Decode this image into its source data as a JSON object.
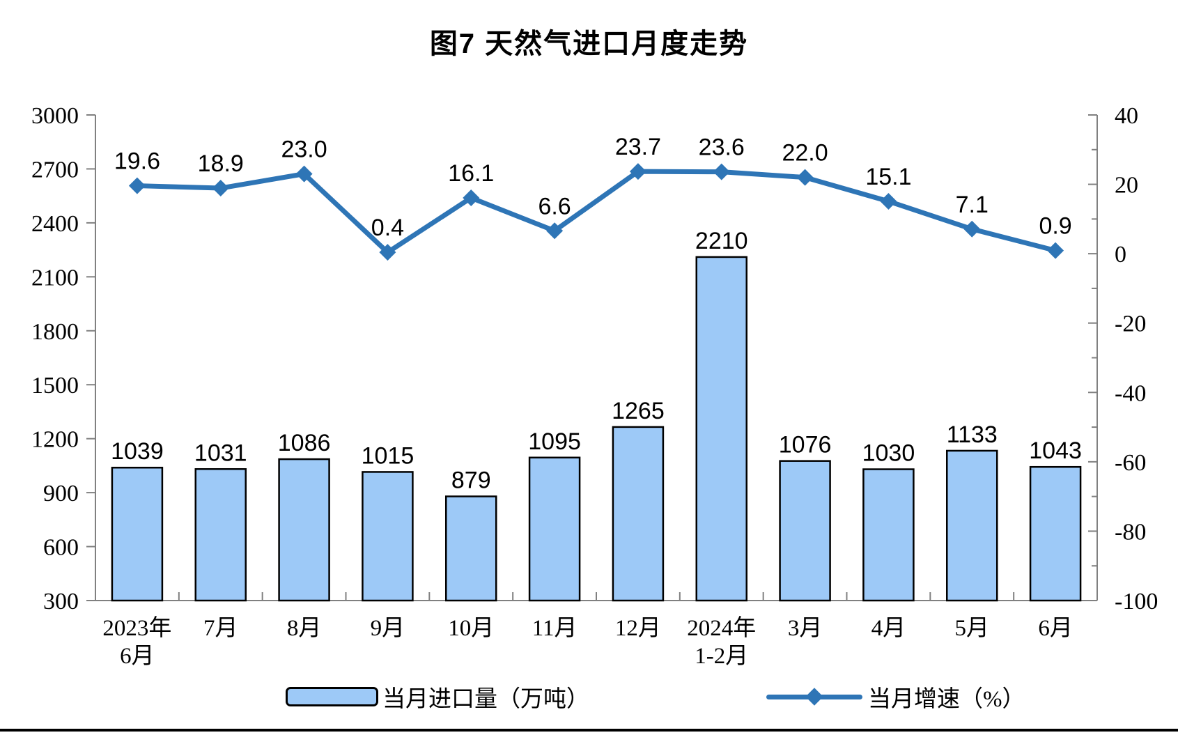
{
  "title": "图7 天然气进口月度走势",
  "colors": {
    "bar_fill": "#9DC9F7",
    "bar_border": "#000000",
    "line": "#2E75B6",
    "axis": "#808080",
    "text": "#000000"
  },
  "chart_data": {
    "type": "bar",
    "subtype": "combo-bar-line-dual-axis",
    "title": "图7 天然气进口月度走势",
    "categories": [
      [
        "2023年",
        "6月"
      ],
      [
        "7月"
      ],
      [
        "8月"
      ],
      [
        "9月"
      ],
      [
        "10月"
      ],
      [
        "11月"
      ],
      [
        "12月"
      ],
      [
        "2024年",
        "1-2月"
      ],
      [
        "3月"
      ],
      [
        "4月"
      ],
      [
        "5月"
      ],
      [
        "6月"
      ]
    ],
    "series": [
      {
        "name": "当月进口量（万吨）",
        "type": "bar",
        "axis": "left",
        "values": [
          1039,
          1031,
          1086,
          1015,
          879,
          1095,
          1265,
          2210,
          1076,
          1030,
          1133,
          1043
        ],
        "labels": [
          "1039",
          "1031",
          "1086",
          "1015",
          "879",
          "1095",
          "1265",
          "2210",
          "1076",
          "1030",
          "1133",
          "1043"
        ]
      },
      {
        "name": "当月增速（%）",
        "type": "line",
        "axis": "right",
        "marker": "diamond",
        "values": [
          19.6,
          18.9,
          23.0,
          0.4,
          16.1,
          6.6,
          23.7,
          23.6,
          22.0,
          15.1,
          7.1,
          0.9
        ],
        "labels": [
          "19.6",
          "18.9",
          "23.0",
          "0.4",
          "16.1",
          "6.6",
          "23.7",
          "23.6",
          "22.0",
          "15.1",
          "7.1",
          "0.9"
        ]
      }
    ],
    "left_axis": {
      "min": 300,
      "max": 3000,
      "step": 300,
      "tick_labels": [
        "3000",
        "2700",
        "2400",
        "2100",
        "1800",
        "1500",
        "1200",
        "900",
        "600",
        "300"
      ]
    },
    "right_axis": {
      "min": -100,
      "max": 40,
      "step": 20,
      "minor_step": 10,
      "tick_labels": [
        "40",
        "20",
        "0",
        "-20",
        "-40",
        "-60",
        "-80",
        "-100"
      ]
    },
    "grid": "off",
    "legend_position": "bottom",
    "legend": [
      {
        "label": "当月进口量（万吨）",
        "swatch": "bar"
      },
      {
        "label": "当月增速（%）",
        "swatch": "line-diamond"
      }
    ]
  }
}
